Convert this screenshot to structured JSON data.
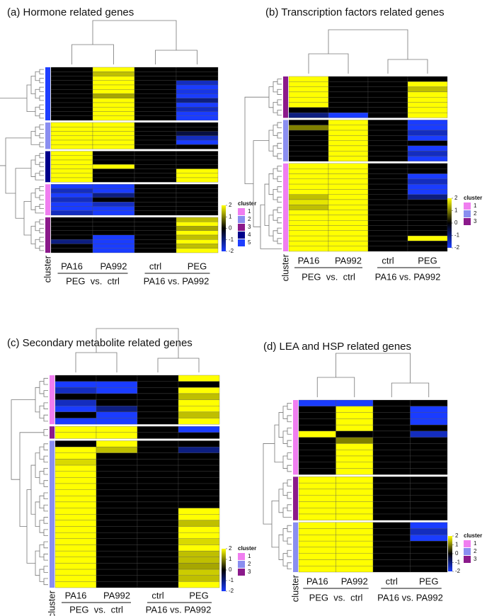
{
  "chart_data": [
    {
      "type": "heatmap",
      "title": "(a)  Hormone related genes",
      "column_labels": [
        "PA16",
        "PA992",
        "ctrl",
        "PEG"
      ],
      "comparisons": [
        "PEG  vs.  ctrl",
        "PA16 vs. PA992"
      ],
      "annotation_label": "cluster",
      "legend_title": "cluster",
      "clusters": [
        {
          "name": "1",
          "color": "#f07ef0"
        },
        {
          "name": "2",
          "color": "#8a8ef0"
        },
        {
          "name": "3",
          "color": "#8b1a8b"
        },
        {
          "name": "4",
          "color": "#00008b"
        },
        {
          "name": "5",
          "color": "#1f3fff"
        }
      ],
      "colors": [
        "#1a3cff",
        "#000000",
        "#ffff00"
      ],
      "clim": [
        -2,
        2
      ],
      "cticks": [
        2,
        1,
        0,
        -1,
        -2
      ],
      "blocks": [
        {
          "cluster": "5",
          "values": [
            [
              0,
              2,
              0,
              0
            ],
            [
              0,
              1.5,
              0,
              0
            ],
            [
              0,
              2,
              0,
              0
            ],
            [
              0,
              2,
              0,
              -1.5
            ],
            [
              0,
              2,
              0,
              -2
            ],
            [
              0,
              2,
              0,
              -1.8
            ],
            [
              0,
              1.3,
              0,
              -2
            ],
            [
              0,
              2,
              0,
              -1
            ],
            [
              0,
              2,
              0,
              -2
            ],
            [
              0,
              2,
              0,
              -1.5
            ],
            [
              0,
              2,
              0,
              -2
            ],
            [
              0,
              2,
              0,
              -2
            ]
          ]
        },
        {
          "cluster": "2",
          "values": [
            [
              2,
              2,
              0,
              0
            ],
            [
              2,
              2,
              0,
              0
            ],
            [
              2,
              2,
              0,
              -0.5
            ],
            [
              2,
              2,
              0,
              -1.5
            ],
            [
              2,
              2,
              0,
              -2
            ],
            [
              2,
              2,
              0,
              0
            ]
          ]
        },
        {
          "cluster": "4",
          "values": [
            [
              2,
              0,
              0,
              0
            ],
            [
              2,
              0,
              0,
              0
            ],
            [
              2,
              0,
              0,
              0
            ],
            [
              2,
              2,
              0,
              0
            ],
            [
              2,
              0,
              0,
              2
            ],
            [
              2,
              0,
              0,
              2
            ],
            [
              2,
              0,
              0,
              2
            ]
          ]
        },
        {
          "cluster": "1",
          "values": [
            [
              -2,
              -2,
              0,
              0
            ],
            [
              -1.5,
              -2,
              0,
              0
            ],
            [
              -2,
              -1,
              0,
              0
            ],
            [
              -1.5,
              0,
              0,
              0
            ],
            [
              -2,
              -1.5,
              0,
              0
            ],
            [
              -2,
              -2,
              0,
              0
            ],
            [
              -1.5,
              -2,
              0,
              0
            ]
          ]
        },
        {
          "cluster": "3",
          "values": [
            [
              0,
              0,
              0,
              1.5
            ],
            [
              0,
              0,
              0,
              2
            ],
            [
              0,
              0,
              0,
              1.3
            ],
            [
              0,
              0,
              0,
              2
            ],
            [
              0,
              -2,
              0,
              1.5
            ],
            [
              -1,
              -2,
              0,
              2
            ],
            [
              0,
              -2,
              0,
              1.5
            ],
            [
              0,
              -2,
              0,
              2
            ]
          ]
        }
      ]
    },
    {
      "type": "heatmap",
      "title": "(b)  Transcription factors related genes",
      "column_labels": [
        "PA16",
        "PA992",
        "ctrl",
        "PEG"
      ],
      "comparisons": [
        "PEG  vs.  ctrl",
        "PA16 vs. PA992"
      ],
      "annotation_label": "cluster",
      "legend_title": "cluster",
      "clusters": [
        {
          "name": "1",
          "color": "#f07ef0"
        },
        {
          "name": "2",
          "color": "#8a8ef0"
        },
        {
          "name": "3",
          "color": "#8b1a8b"
        }
      ],
      "colors": [
        "#1a3cff",
        "#000000",
        "#ffff00"
      ],
      "clim": [
        -2,
        2
      ],
      "cticks": [
        2,
        1,
        0,
        -1,
        -2
      ],
      "blocks": [
        {
          "cluster": "3",
          "values": [
            [
              2,
              0,
              0,
              0
            ],
            [
              2,
              0,
              0,
              2
            ],
            [
              2,
              0,
              0,
              1.5
            ],
            [
              2,
              0,
              0,
              2
            ],
            [
              2,
              0,
              0,
              2
            ],
            [
              2,
              0,
              0,
              2
            ],
            [
              0,
              0,
              0,
              2
            ],
            [
              -1,
              -2,
              0,
              2
            ]
          ]
        },
        {
          "cluster": "2",
          "values": [
            [
              0,
              2,
              0,
              -2
            ],
            [
              1,
              2,
              0,
              -2
            ],
            [
              0,
              2,
              0,
              -1.5
            ],
            [
              0,
              2,
              0,
              -2
            ],
            [
              0,
              2,
              0,
              0
            ],
            [
              0,
              2,
              0,
              -2
            ],
            [
              0,
              2,
              0,
              -1.5
            ],
            [
              0,
              2,
              0,
              -2
            ]
          ]
        },
        {
          "cluster": "1",
          "values": [
            [
              2,
              2,
              0,
              0
            ],
            [
              2,
              2,
              0,
              0
            ],
            [
              2,
              2,
              0,
              -2
            ],
            [
              2,
              2,
              0,
              -1.5
            ],
            [
              2,
              2,
              0,
              -2
            ],
            [
              2,
              2,
              0,
              -2
            ],
            [
              1.5,
              2,
              0,
              -1
            ],
            [
              1.8,
              2,
              0,
              0
            ],
            [
              1.5,
              2,
              0,
              0
            ],
            [
              2,
              2,
              0,
              0
            ],
            [
              2,
              2,
              0,
              0
            ],
            [
              2,
              2,
              0,
              0
            ],
            [
              2,
              2,
              0,
              0
            ],
            [
              2,
              2,
              0,
              0
            ],
            [
              2,
              2,
              0,
              2
            ],
            [
              2,
              2,
              0,
              0
            ],
            [
              2,
              2,
              0,
              0
            ]
          ]
        }
      ]
    },
    {
      "type": "heatmap",
      "title": "(c)  Secondary metabolite related genes",
      "column_labels": [
        "PA16",
        "PA992",
        "ctrl",
        "PEG"
      ],
      "comparisons": [
        "PEG  vs.  ctrl",
        "PA16 vs. PA992"
      ],
      "annotation_label": "cluster",
      "legend_title": "cluster",
      "clusters": [
        {
          "name": "1",
          "color": "#f07ef0"
        },
        {
          "name": "2",
          "color": "#8a8ef0"
        },
        {
          "name": "3",
          "color": "#8b1a8b"
        }
      ],
      "colors": [
        "#1a3cff",
        "#000000",
        "#ffff00"
      ],
      "clim": [
        -2,
        2
      ],
      "cticks": [
        2,
        1,
        0,
        -1,
        -2
      ],
      "blocks": [
        {
          "cluster": "1",
          "values": [
            [
              0,
              0,
              0,
              2
            ],
            [
              -2,
              -2,
              0,
              0
            ],
            [
              -1.5,
              -2,
              0,
              2
            ],
            [
              0,
              0,
              0,
              1.5
            ],
            [
              -1.5,
              0,
              0,
              2
            ],
            [
              -2,
              -1,
              0,
              2
            ],
            [
              0,
              -2,
              0,
              1.5
            ],
            [
              -2,
              -2,
              0,
              2
            ]
          ]
        },
        {
          "cluster": "3",
          "values": [
            [
              2,
              2,
              0,
              -2
            ],
            [
              2,
              2,
              0,
              0
            ]
          ]
        },
        {
          "cluster": "2",
          "values": [
            [
              0,
              2,
              0,
              0
            ],
            [
              2,
              1.5,
              0,
              -1
            ],
            [
              2,
              0,
              0,
              0
            ],
            [
              1.7,
              0,
              0,
              0
            ],
            [
              2,
              0,
              0,
              0
            ],
            [
              2,
              0,
              0,
              0
            ],
            [
              2,
              0,
              0,
              0
            ],
            [
              2,
              0,
              0,
              0
            ],
            [
              2,
              0,
              0,
              0
            ],
            [
              2,
              0,
              0,
              0
            ],
            [
              2,
              0,
              0,
              0
            ],
            [
              2,
              0,
              0,
              2
            ],
            [
              2,
              0,
              0,
              2
            ],
            [
              2,
              0,
              0,
              1.5
            ],
            [
              2,
              0,
              0,
              2
            ],
            [
              2,
              0,
              0,
              2
            ],
            [
              2,
              0,
              0,
              1.7
            ],
            [
              2,
              0,
              0,
              2
            ],
            [
              2,
              0,
              0,
              1.5
            ],
            [
              2,
              0,
              0,
              1.5
            ],
            [
              2,
              0,
              0,
              1.3
            ],
            [
              2,
              0,
              0,
              1.6
            ],
            [
              2,
              0,
              0,
              1.5
            ],
            [
              2,
              0,
              0,
              2
            ]
          ]
        }
      ]
    },
    {
      "type": "heatmap",
      "title": "(d)  LEA and HSP related genes",
      "column_labels": [
        "PA16",
        "PA992",
        "ctrl",
        "PEG"
      ],
      "comparisons": [
        "PEG  vs.  ctrl",
        "PA16 vs. PA992"
      ],
      "annotation_label": "cluster",
      "legend_title": "cluster",
      "clusters": [
        {
          "name": "1",
          "color": "#f07ef0"
        },
        {
          "name": "2",
          "color": "#8a8ef0"
        },
        {
          "name": "3",
          "color": "#8b1a8b"
        }
      ],
      "colors": [
        "#1a3cff",
        "#000000",
        "#ffff00"
      ],
      "clim": [
        -2,
        2
      ],
      "cticks": [
        2,
        1,
        0,
        -1,
        -2
      ],
      "blocks": [
        {
          "cluster": "1",
          "values": [
            [
              -2,
              -2,
              0,
              0
            ],
            [
              0,
              2,
              0,
              -2
            ],
            [
              0,
              2,
              0,
              -2
            ],
            [
              0,
              2,
              0,
              -2
            ],
            [
              0,
              2,
              0,
              0
            ],
            [
              2,
              0,
              0,
              -1.5
            ],
            [
              0,
              1,
              0,
              0
            ],
            [
              0,
              2,
              0,
              0
            ],
            [
              0,
              2,
              0,
              0
            ],
            [
              0,
              2,
              0,
              0
            ],
            [
              0,
              2,
              0,
              0
            ],
            [
              0,
              2,
              0,
              0
            ]
          ]
        },
        {
          "cluster": "3",
          "values": [
            [
              2,
              2,
              0,
              0
            ],
            [
              2,
              2,
              0,
              0
            ],
            [
              2,
              2,
              0,
              0
            ],
            [
              2,
              2,
              0,
              0
            ],
            [
              2,
              2,
              0,
              0
            ],
            [
              2,
              2,
              0,
              0
            ],
            [
              2,
              2,
              0,
              0
            ]
          ]
        },
        {
          "cluster": "2",
          "values": [
            [
              2,
              2,
              0,
              -2
            ],
            [
              2,
              2,
              0,
              -1.5
            ],
            [
              2,
              2,
              0,
              -2
            ],
            [
              2,
              2,
              0,
              0
            ],
            [
              2,
              2,
              0,
              0
            ],
            [
              2,
              2,
              0,
              0
            ],
            [
              2,
              2,
              0,
              0
            ],
            [
              2,
              2,
              0,
              0
            ]
          ]
        }
      ]
    }
  ]
}
